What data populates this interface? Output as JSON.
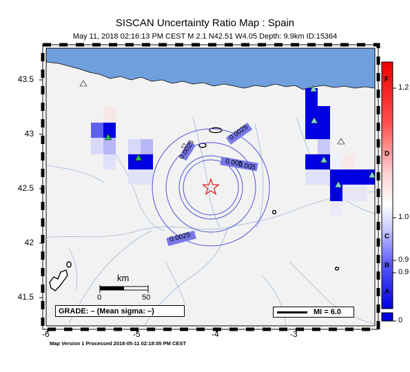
{
  "header": {
    "title": "SISCAN Uncertainty Ratio Map : Spain",
    "subtitle": "May 11, 2018 02:16:13 PM CEST   M 2.1   N42.51 W4.05   Depth: 9.9km   ID:15364"
  },
  "axes": {
    "lat_labels": [
      "43.5",
      "43",
      "42.5",
      "42",
      "41.5"
    ],
    "lon_labels": [
      "-6",
      "-5",
      "-4",
      "-3"
    ]
  },
  "contours": [
    "0.0025",
    "0.0025",
    "0.005",
    "0.005",
    "0.0025"
  ],
  "scale_bar": {
    "title": "km",
    "start": "0",
    "end": "50"
  },
  "grade_text": "GRADE: – (Mean sigma: –)",
  "mi_legend": "MI = 6.0",
  "colorbar": {
    "ticks": [
      "1.2",
      "1.0",
      "0.9",
      "0.9",
      "0"
    ],
    "grade_letters": [
      "F",
      "D",
      "C",
      "B",
      "A"
    ]
  },
  "footer": "Map Version 1 Processed 2018-05-11 02:18:05 PM CEST",
  "epicenter": {
    "lat": 42.51,
    "lon": -4.05
  },
  "colors": {
    "sea": "#6f9fdc",
    "land": "#f2f2f2",
    "station": "#2db84a",
    "star": "#e02020",
    "contour": "#5050d8"
  }
}
